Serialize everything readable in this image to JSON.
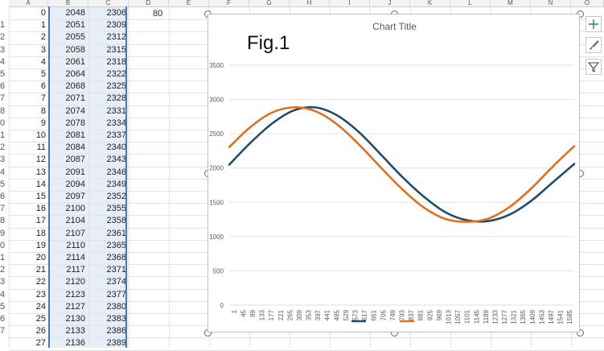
{
  "columns": [
    "A",
    "B",
    "C",
    "D",
    "E",
    "F",
    "G",
    "H",
    "I",
    "J",
    "K",
    "L",
    "M",
    "N",
    "O"
  ],
  "row_numbers": [
    "",
    "1",
    "2",
    "3",
    "4",
    "5",
    "6",
    "7",
    "8",
    "0",
    "1",
    "2",
    "3",
    "4",
    "5",
    "6",
    "7",
    "8",
    "9",
    "0",
    "1",
    "2",
    "3",
    "4",
    "5",
    "6",
    "7"
  ],
  "rows": [
    {
      "a": "0",
      "b": "2048",
      "c": "2306"
    },
    {
      "a": "1",
      "b": "2051",
      "c": "2309"
    },
    {
      "a": "2",
      "b": "2055",
      "c": "2312"
    },
    {
      "a": "3",
      "b": "2058",
      "c": "2315"
    },
    {
      "a": "4",
      "b": "2061",
      "c": "2318"
    },
    {
      "a": "5",
      "b": "2064",
      "c": "2322"
    },
    {
      "a": "6",
      "b": "2068",
      "c": "2325"
    },
    {
      "a": "7",
      "b": "2071",
      "c": "2328"
    },
    {
      "a": "8",
      "b": "2074",
      "c": "2331"
    },
    {
      "a": "9",
      "b": "2078",
      "c": "2334"
    },
    {
      "a": "10",
      "b": "2081",
      "c": "2337"
    },
    {
      "a": "11",
      "b": "2084",
      "c": "2340"
    },
    {
      "a": "12",
      "b": "2087",
      "c": "2343"
    },
    {
      "a": "13",
      "b": "2091",
      "c": "2346"
    },
    {
      "a": "14",
      "b": "2094",
      "c": "2349"
    },
    {
      "a": "15",
      "b": "2097",
      "c": "2352"
    },
    {
      "a": "16",
      "b": "2100",
      "c": "2355"
    },
    {
      "a": "17",
      "b": "2104",
      "c": "2358"
    },
    {
      "a": "18",
      "b": "2107",
      "c": "2361"
    },
    {
      "a": "19",
      "b": "2110",
      "c": "2365"
    },
    {
      "a": "20",
      "b": "2114",
      "c": "2368"
    },
    {
      "a": "21",
      "b": "2117",
      "c": "2371"
    },
    {
      "a": "22",
      "b": "2120",
      "c": "2374"
    },
    {
      "a": "23",
      "b": "2123",
      "c": "2377"
    },
    {
      "a": "24",
      "b": "2127",
      "c": "2380"
    },
    {
      "a": "25",
      "b": "2130",
      "c": "2383"
    },
    {
      "a": "26",
      "b": "2133",
      "c": "2386"
    },
    {
      "a": "27",
      "b": "2136",
      "c": "2389"
    }
  ],
  "cell_d1": "80",
  "side_buttons": [
    "plus-icon",
    "brush-icon",
    "filter-icon"
  ],
  "chart_data": {
    "type": "line",
    "title": "Chart Title",
    "annotation": "Fig.1",
    "ylim": [
      0,
      3500
    ],
    "yticks": [
      "0",
      "500",
      "1000",
      "1500",
      "2000",
      "2500",
      "3000",
      "3500"
    ],
    "xticks": [
      "1",
      "45",
      "89",
      "133",
      "177",
      "221",
      "265",
      "309",
      "353",
      "397",
      "441",
      "485",
      "529",
      "573",
      "617",
      "661",
      "705",
      "749",
      "793",
      "837",
      "881",
      "925",
      "969",
      "1013",
      "1057",
      "1101",
      "1145",
      "1189",
      "1233",
      "1277",
      "1321",
      "1365",
      "1409",
      "1453",
      "1497",
      "1541",
      "1585"
    ],
    "xlim": [
      1,
      1600
    ],
    "grid": true,
    "legend": "bottom",
    "series": [
      {
        "color": "#1f4e6b",
        "x": [
          1,
          100,
          200,
          300,
          400,
          500,
          600,
          700,
          800,
          900,
          1000,
          1100,
          1200,
          1300,
          1400,
          1500,
          1600
        ],
        "y": [
          2048,
          2370,
          2650,
          2840,
          2885,
          2770,
          2530,
          2210,
          1880,
          1590,
          1360,
          1240,
          1225,
          1320,
          1520,
          1790,
          2060
        ]
      },
      {
        "color": "#e07020",
        "x": [
          1,
          100,
          200,
          300,
          400,
          500,
          600,
          700,
          800,
          900,
          1000,
          1100,
          1200,
          1300,
          1400,
          1500,
          1600
        ],
        "y": [
          2306,
          2600,
          2810,
          2885,
          2830,
          2640,
          2350,
          2020,
          1700,
          1430,
          1260,
          1215,
          1260,
          1430,
          1700,
          2020,
          2320
        ]
      }
    ]
  }
}
